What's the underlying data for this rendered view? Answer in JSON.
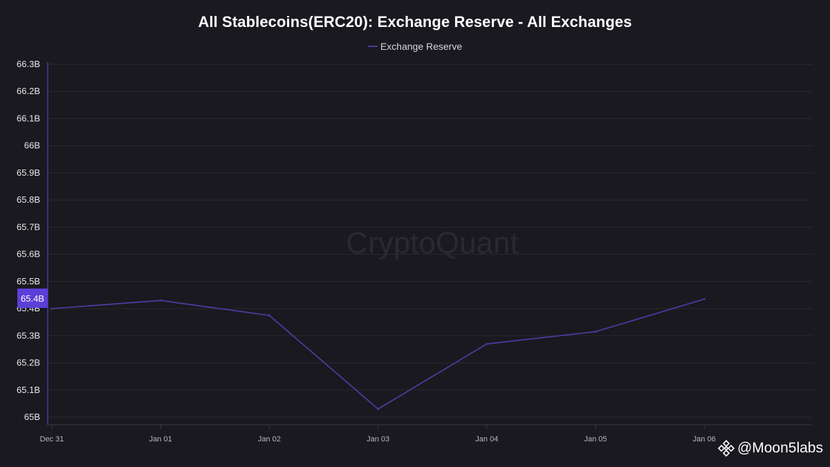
{
  "colors": {
    "background": "#1a191f",
    "series": "#4b3a9c",
    "grid": "#2a2931",
    "axis": "#3a3940",
    "marker_label_bg": "#5b3fd8"
  },
  "watermark": "CryptoQuant",
  "credit": {
    "icon": "binance-logo-icon",
    "text": "@Moon5labs"
  },
  "chart_data": {
    "type": "line",
    "title": "All Stablecoins(ERC20): Exchange Reserve - All Exchanges",
    "xlabel": "",
    "ylabel": "",
    "x": [
      "Dec 31",
      "Jan 01",
      "Jan 02",
      "Jan 03",
      "Jan 04",
      "Jan 05",
      "Jan 06"
    ],
    "series": [
      {
        "name": "Exchange Reserve",
        "values": [
          65.4,
          65.43,
          65.375,
          65.03,
          65.27,
          65.315,
          65.435
        ]
      }
    ],
    "y_ticks": [
      "65B",
      "65.1B",
      "65.2B",
      "65.3B",
      "65.4B",
      "65.5B",
      "65.6B",
      "65.7B",
      "65.8B",
      "65.9B",
      "66B",
      "66.1B",
      "66.2B",
      "66.3B"
    ],
    "ylim": [
      65.0,
      66.3
    ],
    "current_value_label": "65.4B",
    "grid": true,
    "legend_position": "top-center"
  }
}
